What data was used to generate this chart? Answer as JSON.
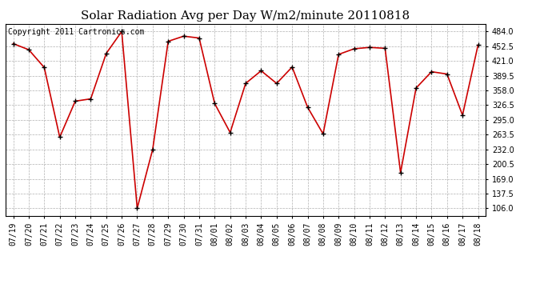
{
  "title": "Solar Radiation Avg per Day W/m2/minute 20110818",
  "copyright_text": "Copyright 2011 Cartronics.com",
  "labels": [
    "07/19",
    "07/20",
    "07/21",
    "07/22",
    "07/23",
    "07/24",
    "07/25",
    "07/26",
    "07/27",
    "07/28",
    "07/29",
    "07/30",
    "07/31",
    "08/01",
    "08/02",
    "08/03",
    "08/04",
    "08/05",
    "08/06",
    "08/07",
    "08/08",
    "08/09",
    "08/10",
    "08/11",
    "08/12",
    "08/13",
    "08/14",
    "08/15",
    "08/16",
    "08/17",
    "08/18"
  ],
  "values": [
    458.0,
    445.0,
    407.0,
    258.0,
    335.0,
    340.0,
    437.0,
    484.0,
    106.0,
    232.0,
    463.0,
    474.0,
    470.0,
    330.0,
    268.0,
    373.0,
    400.0,
    373.0,
    408.0,
    322.0,
    265.0,
    435.0,
    447.0,
    450.0,
    448.0,
    182.0,
    363.0,
    398.0,
    393.0,
    305.0,
    455.0
  ],
  "line_color": "#cc0000",
  "marker_color": "#000000",
  "background_color": "#ffffff",
  "plot_bg_color": "#ffffff",
  "grid_color": "#b0b0b0",
  "yticks": [
    106.0,
    137.5,
    169.0,
    200.5,
    232.0,
    263.5,
    295.0,
    326.5,
    358.0,
    389.5,
    421.0,
    452.5,
    484.0
  ],
  "ylim": [
    89.5,
    500.0
  ],
  "title_fontsize": 11,
  "copyright_fontsize": 7,
  "tick_fontsize": 7,
  "figwidth": 6.9,
  "figheight": 3.75,
  "dpi": 100
}
